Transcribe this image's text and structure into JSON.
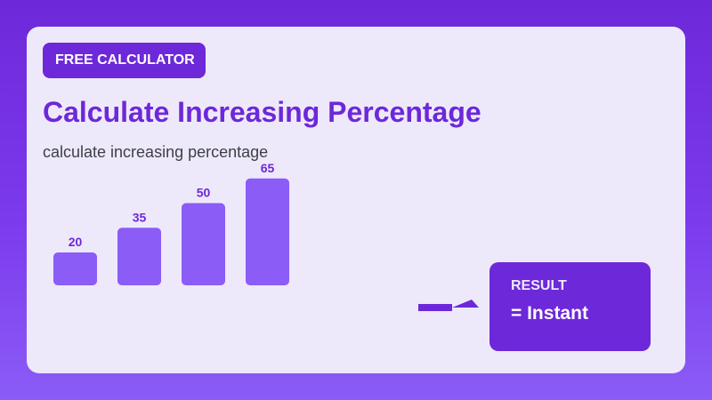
{
  "badge": {
    "label": "FREE CALCULATOR"
  },
  "page": {
    "title": "Calculate Increasing Percentage",
    "subtitle": "calculate increasing percentage"
  },
  "result": {
    "label": "RESULT",
    "value": "= Instant"
  },
  "colors": {
    "accent": "#6d28d9",
    "bar": "#8b5cf6",
    "bar_label": "#6d28d9",
    "card": "#ede9fb"
  },
  "chart_data": {
    "type": "bar",
    "categories": [
      "",
      "",
      "",
      ""
    ],
    "values": [
      20,
      35,
      50,
      65
    ],
    "ylim": [
      0,
      100
    ]
  }
}
